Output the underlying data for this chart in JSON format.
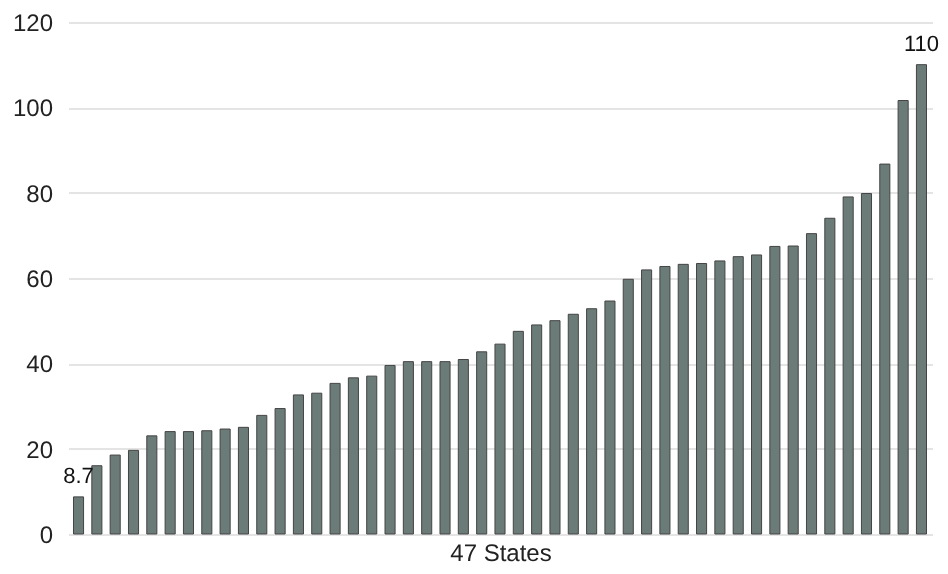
{
  "chart_data": {
    "type": "bar",
    "xlabel": "47 States",
    "categories": [
      null,
      null,
      null,
      null,
      null,
      null,
      null,
      null,
      null,
      null,
      null,
      null,
      null,
      null,
      null,
      null,
      null,
      null,
      null,
      null,
      null,
      null,
      null,
      null,
      null,
      null,
      null,
      null,
      null,
      null,
      null,
      null,
      null,
      null,
      null,
      null,
      null,
      null,
      null,
      null,
      null,
      null,
      null,
      null,
      null,
      null,
      null
    ],
    "values": [
      8.7,
      16,
      18.5,
      19.6,
      23,
      24,
      24,
      24.2,
      24.6,
      25,
      27.8,
      29.4,
      32.6,
      33,
      35.3,
      36.6,
      37,
      39.5,
      40.4,
      40.4,
      40.4,
      40.9,
      42.7,
      44.5,
      47.5,
      49,
      50,
      51.5,
      52.8,
      54.6,
      59.7,
      61.9,
      62.7,
      63.2,
      63.4,
      64,
      65,
      65.4,
      67.4,
      67.5,
      70.4,
      74,
      79,
      79.8,
      86.7,
      101.6,
      110
    ],
    "value_labels": [
      "8.7",
      null,
      null,
      null,
      null,
      null,
      null,
      null,
      null,
      null,
      null,
      null,
      null,
      null,
      null,
      null,
      null,
      null,
      null,
      null,
      null,
      null,
      null,
      null,
      null,
      null,
      null,
      null,
      null,
      null,
      null,
      null,
      null,
      null,
      null,
      null,
      null,
      null,
      null,
      null,
      null,
      null,
      null,
      null,
      null,
      null,
      "110"
    ],
    "color": "#6b7b78",
    "ylim": [
      0,
      120
    ],
    "yticks": [
      0,
      20,
      40,
      60,
      80,
      100,
      120
    ],
    "grid": "y",
    "tick_labels": "y"
  }
}
